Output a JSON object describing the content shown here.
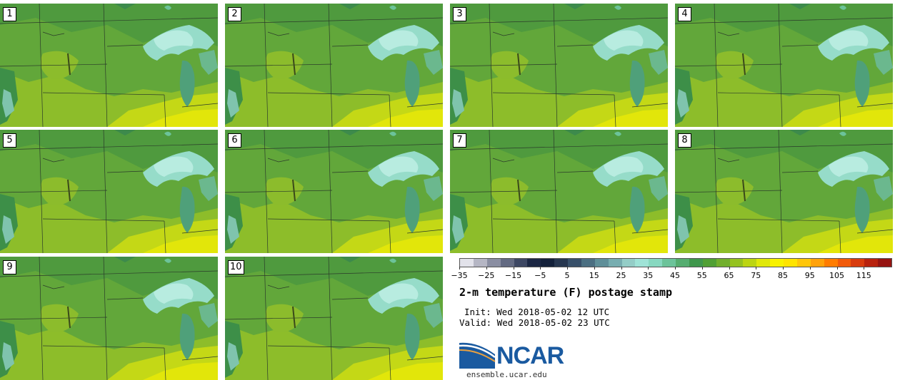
{
  "panels": [
    {
      "label": "1"
    },
    {
      "label": "2"
    },
    {
      "label": "3"
    },
    {
      "label": "4"
    },
    {
      "label": "5"
    },
    {
      "label": "6"
    },
    {
      "label": "7"
    },
    {
      "label": "8"
    },
    {
      "label": "9"
    },
    {
      "label": "10"
    }
  ],
  "colorbar": {
    "colors": [
      "#e2e2ea",
      "#b5b6c4",
      "#8a8ea2",
      "#636a82",
      "#3d4763",
      "#1c2744",
      "#13203a",
      "#26364f",
      "#38506a",
      "#4b6f82",
      "#5f8f99",
      "#77adb0",
      "#94cdc7",
      "#9fe3d7",
      "#87d8c0",
      "#6cc39a",
      "#55ad70",
      "#3f974c",
      "#50a034",
      "#71af2c",
      "#95c220",
      "#bcd512",
      "#e0e80a",
      "#f8f200",
      "#ffe400",
      "#ffc60a",
      "#ffa20a",
      "#ff7c00",
      "#f15a0a",
      "#d83c0e",
      "#b8220e",
      "#961411"
    ],
    "ticks": [
      "−35",
      "−25",
      "−15",
      "−5",
      "5",
      "15",
      "25",
      "35",
      "45",
      "55",
      "65",
      "75",
      "85",
      "95",
      "105",
      "115"
    ]
  },
  "title": "2-m temperature (F) postage stamp",
  "init_text": "Init: Wed 2018-05-02 12 UTC",
  "valid_text": "Valid: Wed 2018-05-02 23 UTC",
  "logo": {
    "name": "NCAR"
  },
  "site": "ensemble.ucar.edu"
}
